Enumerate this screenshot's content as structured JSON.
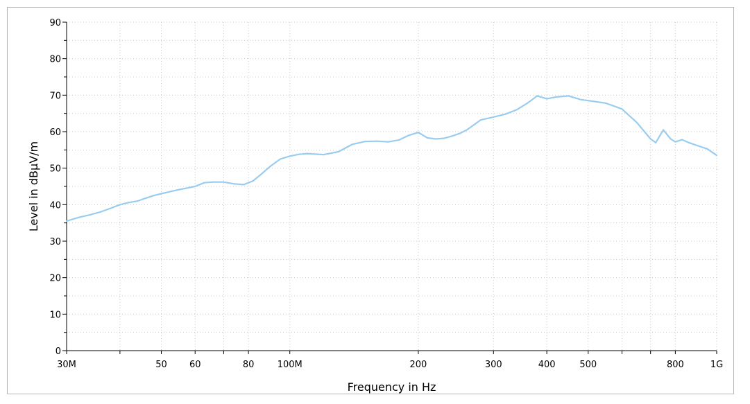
{
  "chart_data": {
    "type": "line",
    "xlabel": "Frequency in Hz",
    "ylabel": "Level in dBµV/m",
    "x_scale": "log",
    "xlim": [
      30000000,
      1000000000
    ],
    "ylim": [
      0,
      90
    ],
    "grid": true,
    "x_ticks": [
      {
        "value": 30000000,
        "label": "30M"
      },
      {
        "value": 40000000,
        "label": ""
      },
      {
        "value": 50000000,
        "label": "50"
      },
      {
        "value": 60000000,
        "label": "60"
      },
      {
        "value": 70000000,
        "label": ""
      },
      {
        "value": 80000000,
        "label": "80"
      },
      {
        "value": 100000000,
        "label": "100M"
      },
      {
        "value": 200000000,
        "label": "200"
      },
      {
        "value": 300000000,
        "label": "300"
      },
      {
        "value": 400000000,
        "label": "400"
      },
      {
        "value": 500000000,
        "label": "500"
      },
      {
        "value": 600000000,
        "label": ""
      },
      {
        "value": 700000000,
        "label": ""
      },
      {
        "value": 800000000,
        "label": "800"
      },
      {
        "value": 1000000000,
        "label": "1G"
      }
    ],
    "y_ticks": [
      {
        "value": 0,
        "label": "0"
      },
      {
        "value": 10,
        "label": "10"
      },
      {
        "value": 20,
        "label": "20"
      },
      {
        "value": 30,
        "label": "30"
      },
      {
        "value": 40,
        "label": "40"
      },
      {
        "value": 50,
        "label": "50"
      },
      {
        "value": 60,
        "label": "60"
      },
      {
        "value": 70,
        "label": "70"
      },
      {
        "value": 80,
        "label": "80"
      },
      {
        "value": 90,
        "label": "90"
      }
    ],
    "series": [
      {
        "name": "",
        "color": "#99ccee",
        "x": [
          30000000,
          32000000,
          34000000,
          36000000,
          38000000,
          40000000,
          42000000,
          44000000,
          46000000,
          48000000,
          50000000,
          53000000,
          56000000,
          60000000,
          63000000,
          66000000,
          70000000,
          74000000,
          78000000,
          82000000,
          86000000,
          90000000,
          95000000,
          100000000,
          105000000,
          110000000,
          120000000,
          130000000,
          140000000,
          150000000,
          160000000,
          170000000,
          180000000,
          190000000,
          200000000,
          210000000,
          220000000,
          230000000,
          240000000,
          250000000,
          260000000,
          280000000,
          300000000,
          320000000,
          340000000,
          360000000,
          380000000,
          400000000,
          420000000,
          450000000,
          480000000,
          500000000,
          550000000,
          600000000,
          650000000,
          700000000,
          720000000,
          750000000,
          780000000,
          800000000,
          830000000,
          860000000,
          900000000,
          950000000,
          1000000000
        ],
        "y": [
          35.5,
          36.5,
          37.2,
          38.0,
          39.0,
          40.0,
          40.6,
          41.0,
          41.8,
          42.5,
          43.0,
          43.7,
          44.3,
          45.0,
          46.0,
          46.2,
          46.2,
          45.7,
          45.5,
          46.5,
          48.5,
          50.5,
          52.5,
          53.3,
          53.8,
          54.0,
          53.7,
          54.5,
          56.5,
          57.3,
          57.4,
          57.2,
          57.7,
          59.0,
          59.8,
          58.3,
          58.0,
          58.2,
          58.8,
          59.5,
          60.5,
          63.2,
          64.0,
          64.8,
          66.0,
          67.8,
          69.8,
          69.0,
          69.5,
          69.8,
          68.8,
          68.5,
          67.8,
          66.2,
          62.5,
          58.0,
          57.0,
          60.5,
          58.0,
          57.2,
          57.8,
          57.0,
          56.2,
          55.3,
          53.5
        ]
      }
    ]
  }
}
